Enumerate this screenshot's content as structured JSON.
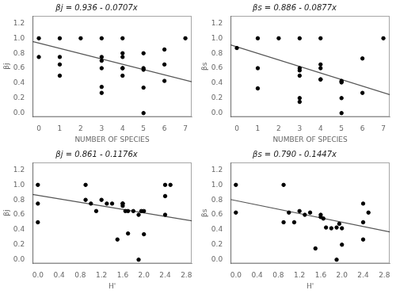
{
  "chart_data": [
    {
      "type": "scatter",
      "title": "βj = 0.936 - 0.0707x",
      "x_label": "NUMBER OF SPECIES",
      "y_label": "βj",
      "xlim": [
        -0.3,
        7.3
      ],
      "xticks": [
        0,
        1,
        2,
        3,
        4,
        5,
        6,
        7
      ],
      "ylim": [
        -0.05,
        1.3
      ],
      "yticks": [
        {
          "value": 0.0,
          "label": "0.0"
        },
        0.2,
        0.4,
        0.6,
        0.8,
        {
          "value": 1.0,
          "label": "1.0"
        },
        1.2
      ],
      "grid": false,
      "series": [
        {
          "type": "scatter",
          "color": "black",
          "x": [
            0,
            0,
            1,
            1,
            1,
            1,
            2,
            3,
            3,
            3,
            3,
            3,
            3,
            4,
            4,
            4,
            4,
            4,
            4,
            5,
            5,
            5,
            5,
            5,
            6,
            6,
            6,
            7
          ],
          "values": [
            1.0,
            0.75,
            1.0,
            0.75,
            0.65,
            0.5,
            1.0,
            1.0,
            0.75,
            0.7,
            0.6,
            0.35,
            0.27,
            1.0,
            0.8,
            0.75,
            0.6,
            0.6,
            0.5,
            0.6,
            0.58,
            0.34,
            0.0,
            0.8,
            0.85,
            0.65,
            0.43,
            1.0
          ]
        },
        {
          "type": "line",
          "color": "#555555",
          "x": [
            -0.3,
            7.3
          ],
          "values": [
            0.95721,
            0.41989
          ]
        }
      ]
    },
    {
      "type": "scatter",
      "title": "βs = 0.886 - 0.0877x",
      "x_label": "NUMBER OF SPECIES",
      "y_label": "βs",
      "xlim": [
        -0.3,
        7.3
      ],
      "xticks": [
        0,
        1,
        2,
        3,
        4,
        5,
        6,
        7
      ],
      "ylim": [
        -0.05,
        1.3
      ],
      "yticks": [
        {
          "value": 0.0,
          "label": "0.0"
        },
        0.2,
        0.4,
        0.6,
        0.8,
        {
          "value": 1.0,
          "label": "1.0"
        },
        1.2
      ],
      "grid": false,
      "series": [
        {
          "type": "scatter",
          "color": "black",
          "x": [
            0,
            1,
            1,
            1,
            2,
            3,
            3,
            3,
            3,
            3,
            3,
            4,
            4,
            4,
            4,
            4,
            5,
            5,
            5,
            5,
            5,
            6,
            6,
            7
          ],
          "values": [
            0.87,
            1.0,
            0.6,
            0.33,
            1.0,
            1.0,
            0.6,
            0.57,
            0.5,
            0.2,
            0.15,
            1.0,
            0.65,
            0.6,
            0.45,
            0.45,
            0.41,
            0.43,
            0.42,
            0.2,
            0.0,
            0.73,
            0.27,
            1.0
          ]
        },
        {
          "type": "line",
          "color": "#555555",
          "x": [
            -0.3,
            7.3
          ],
          "values": [
            0.91231,
            0.24579
          ]
        }
      ]
    },
    {
      "type": "scatter",
      "title": "βj = 0.861 - 0.1176x",
      "x_label": "H'",
      "y_label": "βj",
      "xlim": [
        -0.1,
        2.9
      ],
      "xticks": [
        {
          "value": 0.0,
          "label": "0.0"
        },
        0.4,
        0.8,
        1.2,
        1.6,
        {
          "value": 2.0,
          "label": "2.0"
        },
        2.4,
        2.8
      ],
      "ylim": [
        -0.05,
        1.3
      ],
      "yticks": [
        {
          "value": 0.0,
          "label": "0.0"
        },
        0.2,
        0.4,
        0.6,
        0.8,
        {
          "value": 1.0,
          "label": "1.0"
        },
        1.2
      ],
      "grid": false,
      "series": [
        {
          "type": "scatter",
          "color": "black",
          "x": [
            0.0,
            0.0,
            0.0,
            0.9,
            0.9,
            1.0,
            1.1,
            1.2,
            1.3,
            1.4,
            1.5,
            1.6,
            1.6,
            1.6,
            1.65,
            1.7,
            1.7,
            1.8,
            1.9,
            1.9,
            1.95,
            2.0,
            2.0,
            2.4,
            2.4,
            2.4,
            2.5
          ],
          "values": [
            1.0,
            0.75,
            0.5,
            1.0,
            0.8,
            0.75,
            0.65,
            0.8,
            0.75,
            0.75,
            0.27,
            0.75,
            0.72,
            0.75,
            0.65,
            0.35,
            0.65,
            0.65,
            0.6,
            0.0,
            0.65,
            0.65,
            0.34,
            1.0,
            0.85,
            0.6,
            1.0
          ]
        },
        {
          "type": "line",
          "color": "#555555",
          "x": [
            -0.1,
            2.9
          ],
          "values": [
            0.87276,
            0.51996
          ]
        }
      ]
    },
    {
      "type": "scatter",
      "title": "βs = 0.790 - 0.1447x",
      "x_label": "H'",
      "y_label": "βs",
      "xlim": [
        -0.1,
        2.9
      ],
      "xticks": [
        {
          "value": 0.0,
          "label": "0.0"
        },
        0.4,
        0.8,
        1.2,
        1.6,
        {
          "value": 2.0,
          "label": "2.0"
        },
        2.4,
        2.8
      ],
      "ylim": [
        -0.05,
        1.3
      ],
      "yticks": [
        {
          "value": 0.0,
          "label": "0.0"
        },
        0.2,
        0.4,
        0.6,
        0.8,
        {
          "value": 1.0,
          "label": "1.0"
        },
        1.2
      ],
      "grid": false,
      "series": [
        {
          "type": "scatter",
          "color": "black",
          "x": [
            0.0,
            0.0,
            0.9,
            0.9,
            1.0,
            1.1,
            1.2,
            1.3,
            1.4,
            1.5,
            1.6,
            1.6,
            1.65,
            1.7,
            1.8,
            1.9,
            1.9,
            1.95,
            2.0,
            2.0,
            2.4,
            2.4,
            2.4,
            2.5
          ],
          "values": [
            1.0,
            0.63,
            1.0,
            0.5,
            0.63,
            0.5,
            0.65,
            0.6,
            0.63,
            0.15,
            0.6,
            0.57,
            0.55,
            0.43,
            0.42,
            0.43,
            0.0,
            0.48,
            0.42,
            0.2,
            0.75,
            0.5,
            0.27,
            0.63
          ]
        },
        {
          "type": "line",
          "color": "#555555",
          "x": [
            -0.1,
            2.9
          ],
          "values": [
            0.80447,
            0.37037
          ]
        }
      ]
    }
  ]
}
